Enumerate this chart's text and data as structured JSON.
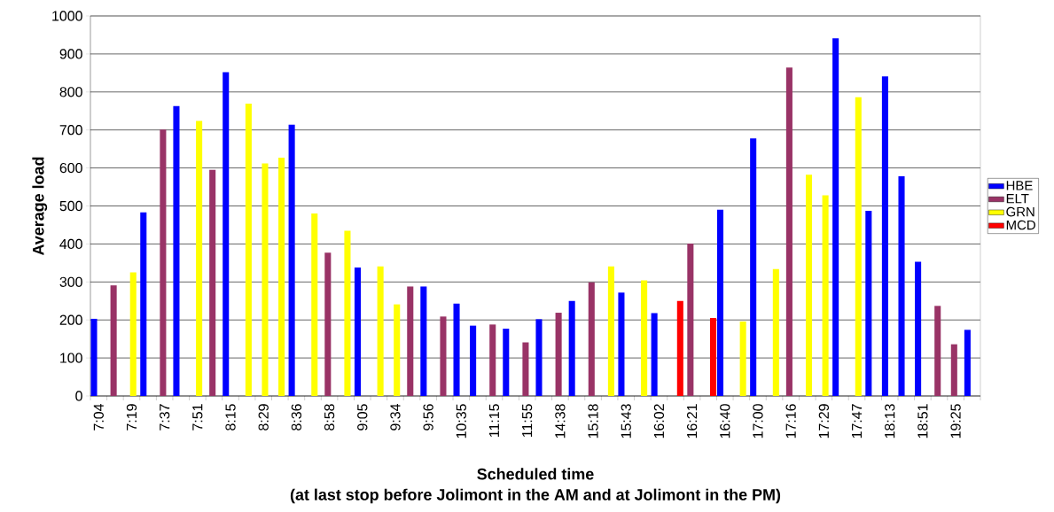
{
  "chart_data": {
    "type": "bar",
    "xlabel": "Scheduled time",
    "ylabel": "Average load",
    "annotations": [
      "(at last stop before Jolimont in the AM and at Jolimont in the PM)"
    ],
    "categories": [
      "7:04",
      null,
      "7:19",
      null,
      "7:37",
      null,
      "7:51",
      null,
      "8:15",
      null,
      "8:29",
      null,
      "8:36",
      null,
      "8:58",
      null,
      "9:05",
      null,
      "9:34",
      null,
      "9:56",
      null,
      "10:35",
      null,
      "11:15",
      null,
      "11:55",
      null,
      "14:38",
      null,
      "15:18",
      null,
      "15:43",
      null,
      "16:02",
      null,
      "16:21",
      null,
      "16:40",
      null,
      "17:00",
      null,
      "17:16",
      null,
      "17:29",
      null,
      "17:47",
      null,
      "18:13",
      null,
      "18:51",
      null,
      "19:25",
      null
    ],
    "series": [
      {
        "name": "HBE",
        "color": "#0000ff",
        "values": [
          203,
          null,
          null,
          483,
          null,
          763,
          null,
          null,
          852,
          null,
          null,
          null,
          714,
          null,
          null,
          null,
          338,
          null,
          null,
          null,
          288,
          null,
          243,
          185,
          null,
          177,
          null,
          202,
          null,
          250,
          null,
          null,
          272,
          null,
          218,
          null,
          null,
          null,
          490,
          null,
          678,
          null,
          null,
          null,
          null,
          941,
          null,
          487,
          841,
          578,
          353,
          null,
          null,
          174
        ]
      },
      {
        "name": "ELT",
        "color": "#993366",
        "values": [
          null,
          291,
          null,
          null,
          701,
          null,
          null,
          595,
          null,
          null,
          null,
          null,
          null,
          null,
          377,
          null,
          null,
          null,
          null,
          288,
          null,
          209,
          null,
          null,
          188,
          null,
          141,
          null,
          219,
          null,
          299,
          null,
          null,
          null,
          null,
          null,
          401,
          null,
          null,
          null,
          null,
          null,
          864,
          null,
          null,
          null,
          null,
          null,
          null,
          null,
          null,
          237,
          136,
          null
        ]
      },
      {
        "name": "GRN",
        "color": "#ffff00",
        "values": [
          null,
          null,
          325,
          null,
          null,
          null,
          724,
          null,
          null,
          769,
          612,
          627,
          null,
          480,
          null,
          435,
          null,
          341,
          241,
          null,
          null,
          null,
          null,
          null,
          null,
          null,
          null,
          null,
          null,
          null,
          null,
          341,
          null,
          304,
          null,
          null,
          null,
          null,
          null,
          196,
          null,
          334,
          null,
          582,
          528,
          null,
          786,
          null,
          null,
          null,
          null,
          null,
          null,
          null
        ]
      },
      {
        "name": "MCD",
        "color": "#ff0000",
        "values": [
          null,
          null,
          null,
          null,
          null,
          null,
          null,
          null,
          null,
          null,
          null,
          null,
          null,
          null,
          null,
          null,
          null,
          null,
          null,
          null,
          null,
          null,
          null,
          null,
          null,
          null,
          null,
          null,
          null,
          null,
          null,
          null,
          null,
          null,
          null,
          250,
          null,
          205,
          null,
          null,
          null,
          null,
          null,
          null,
          null,
          null,
          null,
          null,
          null,
          null,
          null,
          null,
          null,
          null
        ]
      }
    ],
    "ylim": [
      0,
      1000
    ],
    "yticks": [
      0,
      100,
      200,
      300,
      400,
      500,
      600,
      700,
      800,
      900,
      1000
    ],
    "grid": "y",
    "legend": "right"
  }
}
